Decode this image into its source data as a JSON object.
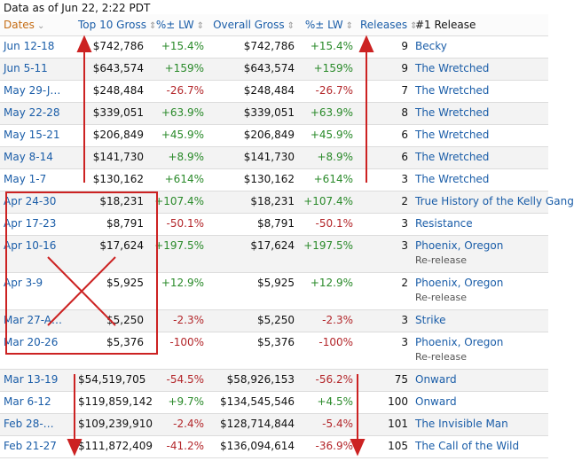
{
  "caption": "Data as of Jun 22, 2:22 PDT",
  "headers": {
    "dates": "Dates",
    "top10": "Top 10 Gross",
    "pct_lw_1": "%± LW",
    "overall": "Overall Gross",
    "pct_lw_2": "%± LW",
    "releases": "Releases",
    "no1": "#1 Release"
  },
  "rows": [
    {
      "date": "Jun 12-18",
      "top10": "$742,786",
      "pct1": "+15.4%",
      "overall": "$742,786",
      "pct2": "+15.4%",
      "releases": "9",
      "title": "Becky",
      "note": ""
    },
    {
      "date": "Jun 5-11",
      "top10": "$643,574",
      "pct1": "+159%",
      "overall": "$643,574",
      "pct2": "+159%",
      "releases": "9",
      "title": "The Wretched",
      "note": ""
    },
    {
      "date": "May 29-J…",
      "top10": "$248,484",
      "pct1": "-26.7%",
      "overall": "$248,484",
      "pct2": "-26.7%",
      "releases": "7",
      "title": "The Wretched",
      "note": ""
    },
    {
      "date": "May 22-28",
      "top10": "$339,051",
      "pct1": "+63.9%",
      "overall": "$339,051",
      "pct2": "+63.9%",
      "releases": "8",
      "title": "The Wretched",
      "note": ""
    },
    {
      "date": "May 15-21",
      "top10": "$206,849",
      "pct1": "+45.9%",
      "overall": "$206,849",
      "pct2": "+45.9%",
      "releases": "6",
      "title": "The Wretched",
      "note": ""
    },
    {
      "date": "May 8-14",
      "top10": "$141,730",
      "pct1": "+8.9%",
      "overall": "$141,730",
      "pct2": "+8.9%",
      "releases": "6",
      "title": "The Wretched",
      "note": ""
    },
    {
      "date": "May 1-7",
      "top10": "$130,162",
      "pct1": "+614%",
      "overall": "$130,162",
      "pct2": "+614%",
      "releases": "3",
      "title": "The Wretched",
      "note": ""
    },
    {
      "date": "Apr 24-30",
      "top10": "$18,231",
      "pct1": "+107.4%",
      "overall": "$18,231",
      "pct2": "+107.4%",
      "releases": "2",
      "title": "True History of the Kelly Gang",
      "note": ""
    },
    {
      "date": "Apr 17-23",
      "top10": "$8,791",
      "pct1": "-50.1%",
      "overall": "$8,791",
      "pct2": "-50.1%",
      "releases": "3",
      "title": "Resistance",
      "note": ""
    },
    {
      "date": "Apr 10-16",
      "top10": "$17,624",
      "pct1": "+197.5%",
      "overall": "$17,624",
      "pct2": "+197.5%",
      "releases": "3",
      "title": "Phoenix, Oregon",
      "note": "Re-release"
    },
    {
      "date": "Apr 3-9",
      "top10": "$5,925",
      "pct1": "+12.9%",
      "overall": "$5,925",
      "pct2": "+12.9%",
      "releases": "2",
      "title": "Phoenix, Oregon",
      "note": "Re-release"
    },
    {
      "date": "Mar 27-A…",
      "top10": "$5,250",
      "pct1": "-2.3%",
      "overall": "$5,250",
      "pct2": "-2.3%",
      "releases": "3",
      "title": "Strike",
      "note": ""
    },
    {
      "date": "Mar 20-26",
      "top10": "$5,376",
      "pct1": "-100%",
      "overall": "$5,376",
      "pct2": "-100%",
      "releases": "3",
      "title": "Phoenix, Oregon",
      "note": "Re-release"
    },
    {
      "date": "Mar 13-19",
      "top10": "$54,519,705",
      "pct1": "-54.5%",
      "overall": "$58,926,153",
      "pct2": "-56.2%",
      "releases": "75",
      "title": "Onward",
      "note": ""
    },
    {
      "date": "Mar 6-12",
      "top10": "$119,859,142",
      "pct1": "+9.7%",
      "overall": "$134,545,546",
      "pct2": "+4.5%",
      "releases": "100",
      "title": "Onward",
      "note": ""
    },
    {
      "date": "Feb 28-…",
      "top10": "$109,239,910",
      "pct1": "-2.4%",
      "overall": "$128,714,844",
      "pct2": "-5.4%",
      "releases": "101",
      "title": "The Invisible Man",
      "note": ""
    },
    {
      "date": "Feb 21-27",
      "top10": "$111,872,409",
      "pct1": "-41.2%",
      "overall": "$136,094,614",
      "pct2": "-36.9%",
      "releases": "105",
      "title": "The Call of the Wild",
      "note": ""
    }
  ],
  "annotation_color": "#cc2222"
}
